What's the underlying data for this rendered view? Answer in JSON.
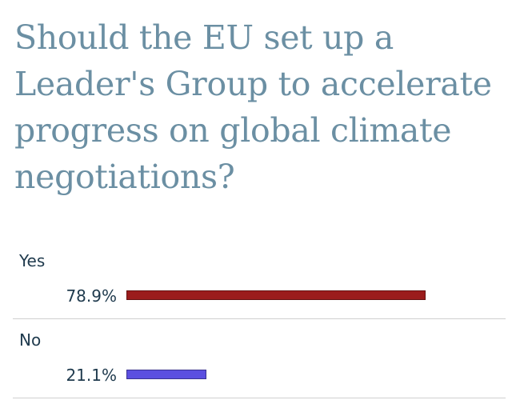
{
  "poll": {
    "question": "Should the EU set up a Leader's Group to accelerate progress on global climate negotiations?"
  },
  "chart_data": {
    "type": "bar",
    "orientation": "horizontal",
    "categories": [
      "Yes",
      "No"
    ],
    "values": [
      78.9,
      21.1
    ],
    "labels": [
      "78.9%",
      "21.1%"
    ],
    "colors": [
      "#9b1c1c",
      "#5b4fe0"
    ],
    "xlim": [
      0,
      100
    ]
  }
}
